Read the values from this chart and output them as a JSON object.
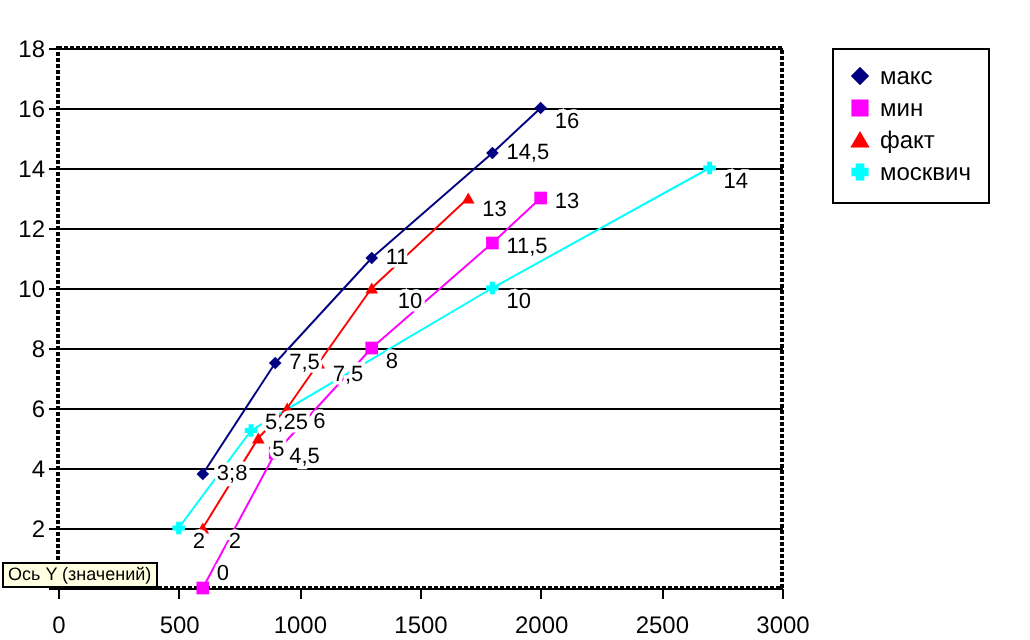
{
  "chart_data": {
    "type": "line",
    "series": [
      {
        "name": "макс",
        "color": "#000080",
        "marker": "diamond",
        "x": [
          600,
          900,
          1300,
          1800,
          2000
        ],
        "values": [
          3.8,
          7.5,
          11,
          14.5,
          16
        ],
        "value_labels": [
          "3,8",
          "7,5",
          "11",
          "14,5",
          "16"
        ]
      },
      {
        "name": "мин",
        "color": "#ff00ff",
        "marker": "square",
        "x": [
          600,
          900,
          1300,
          1800,
          2000
        ],
        "values": [
          0,
          4.5,
          8,
          11.5,
          13
        ],
        "value_labels": [
          "0",
          "4,5",
          "8",
          "11,5",
          "13"
        ]
      },
      {
        "name": "факт",
        "color": "#ff0000",
        "marker": "triangle",
        "x": [
          600,
          830,
          950,
          1080,
          1300,
          1700
        ],
        "values": [
          2,
          5,
          6,
          7.5,
          10,
          13
        ],
        "value_labels": [
          "2",
          "5",
          "6",
          "7,5",
          "10",
          "13"
        ]
      },
      {
        "name": "москвич",
        "color": "#00ffff",
        "marker": "cross",
        "x": [
          500,
          800,
          1800,
          2700
        ],
        "values": [
          2,
          5.25,
          10,
          14
        ],
        "value_labels": [
          "2",
          "5,25",
          "10",
          "14"
        ]
      }
    ],
    "xlim": [
      0,
      3000
    ],
    "xticks": [
      0,
      500,
      1000,
      1500,
      2000,
      2500,
      3000
    ],
    "ylim": [
      0,
      18
    ],
    "yticks": [
      {
        "value": 0,
        "label": null
      },
      2,
      4,
      6,
      8,
      10,
      12,
      14,
      16,
      18
    ],
    "grid": "y",
    "legend": "right",
    "annotations": [
      "Ось Y (значений)"
    ]
  }
}
